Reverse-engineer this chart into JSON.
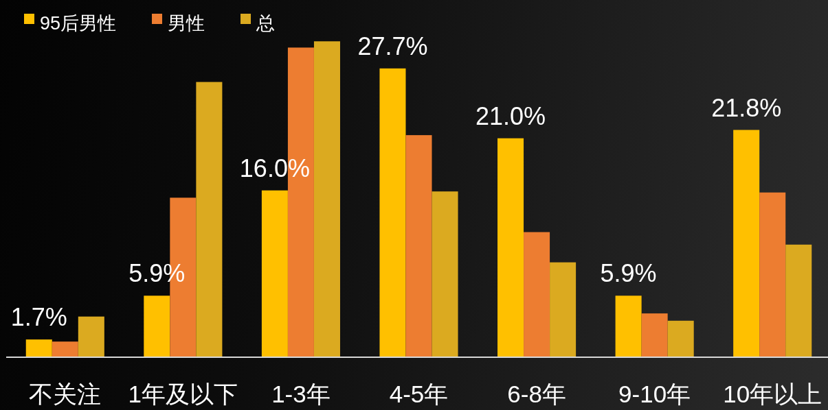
{
  "chart_data": {
    "type": "bar",
    "categories": [
      "不关注",
      "1年及以下",
      "1-3年",
      "4-5年",
      "6-8年",
      "9-10年",
      "10年以上"
    ],
    "series": [
      {
        "name": "95后男性",
        "color": "#ffc000",
        "values": [
          1.7,
          5.9,
          16.0,
          27.7,
          21.0,
          5.9,
          21.8
        ],
        "value_labels": [
          "1.7%",
          "5.9%",
          "16.0%",
          "27.7%",
          "21.0%",
          "5.9%",
          "21.8%"
        ]
      },
      {
        "name": "男性",
        "color": "#ed7d31",
        "values": [
          1.5,
          15.3,
          29.7,
          21.3,
          12.0,
          4.2,
          15.8
        ]
      },
      {
        "name": "总",
        "color": "#dbaa20",
        "values": [
          3.9,
          26.4,
          30.3,
          15.9,
          9.1,
          3.5,
          10.8
        ]
      }
    ],
    "ylim": [
      0,
      34
    ],
    "tick_labels": "x",
    "legend": "top left"
  }
}
